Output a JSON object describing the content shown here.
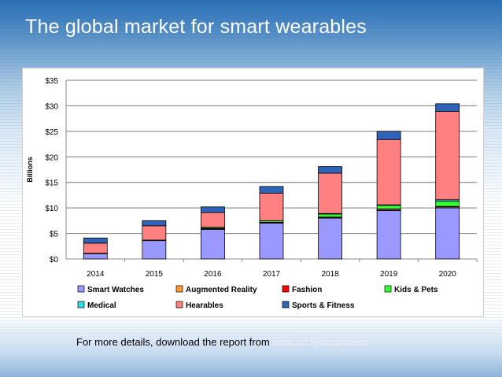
{
  "slide": {
    "title": "The global market for smart wearables",
    "footer_text": "For more details, download the report from ",
    "footer_link": "www.bit.ly/smartwear"
  },
  "chart_data": {
    "type": "bar",
    "stacked": true,
    "title": "",
    "ylabel": "Billions",
    "xlabel": "",
    "categories": [
      "2014",
      "2015",
      "2016",
      "2017",
      "2018",
      "2019",
      "2020"
    ],
    "ylim": [
      0,
      35
    ],
    "yticks": [
      0,
      5,
      10,
      15,
      20,
      25,
      30,
      35
    ],
    "ytick_labels": [
      "$0",
      "$5",
      "$10",
      "$15",
      "$20",
      "$25",
      "$30",
      "$35"
    ],
    "grid": true,
    "legend_position": "bottom",
    "series": [
      {
        "name": "Smart Watches",
        "color": "#9999ff",
        "values": [
          1.0,
          3.6,
          5.8,
          7.0,
          8.0,
          9.5,
          10.0
        ]
      },
      {
        "name": "Augmented Reality",
        "color": "#ff9933",
        "values": [
          0.0,
          0.0,
          0.1,
          0.1,
          0.1,
          0.2,
          0.2
        ]
      },
      {
        "name": "Fashion",
        "color": "#ff0000",
        "values": [
          0.1,
          0.1,
          0.1,
          0.1,
          0.1,
          0.1,
          0.1
        ]
      },
      {
        "name": "Kids & Pets",
        "color": "#33ff33",
        "values": [
          0.0,
          0.0,
          0.2,
          0.3,
          0.6,
          0.7,
          1.0
        ]
      },
      {
        "name": "Medical",
        "color": "#33dddd",
        "values": [
          0.0,
          0.0,
          0.0,
          0.0,
          0.1,
          0.1,
          0.3
        ]
      },
      {
        "name": "Hearables",
        "color": "#ff8080",
        "values": [
          2.0,
          2.8,
          2.9,
          5.4,
          7.9,
          12.8,
          17.3
        ]
      },
      {
        "name": "Sports & Fitness",
        "color": "#2e64b8",
        "values": [
          1.0,
          1.0,
          1.1,
          1.3,
          1.3,
          1.6,
          1.5
        ]
      }
    ]
  }
}
